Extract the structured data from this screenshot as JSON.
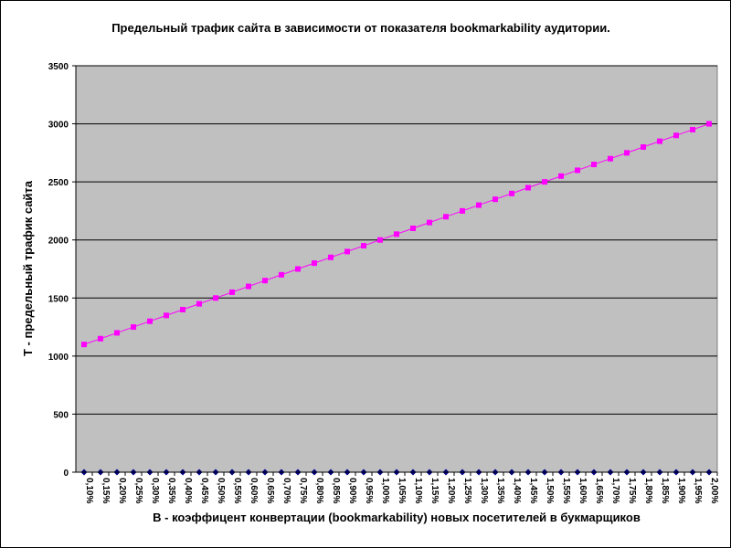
{
  "chart_data": {
    "type": "line",
    "title": "Предельный трафик сайта в зависимости от показателя bookmarkability аудитории.",
    "xlabel": "B - коэффицент конвертации (bookmarkability) новых посетителей в букмарщиков",
    "ylabel": "T - предельный трафик сайта",
    "ylim": [
      0,
      3500
    ],
    "yticks": [
      0,
      500,
      1000,
      1500,
      2000,
      2500,
      3000,
      3500
    ],
    "grid": true,
    "legend": "none",
    "plot_background": "#c0c0c0",
    "categories": [
      "0,10%",
      "0,15%",
      "0,20%",
      "0,25%",
      "0,30%",
      "0,35%",
      "0,40%",
      "0,45%",
      "0,50%",
      "0,55%",
      "0,60%",
      "0,65%",
      "0,70%",
      "0,75%",
      "0,80%",
      "0,85%",
      "0,90%",
      "0,95%",
      "1,00%",
      "1,05%",
      "1,10%",
      "1,15%",
      "1,20%",
      "1,25%",
      "1,30%",
      "1,35%",
      "1,40%",
      "1,45%",
      "1,50%",
      "1,55%",
      "1,60%",
      "1,65%",
      "1,70%",
      "1,75%",
      "1,80%",
      "1,85%",
      "1,90%",
      "1,95%",
      "2,00%"
    ],
    "series": [
      {
        "color": "#ff00ff",
        "marker": "square",
        "values": [
          1100,
          1150,
          1200,
          1250,
          1300,
          1350,
          1400,
          1450,
          1500,
          1550,
          1600,
          1650,
          1700,
          1750,
          1800,
          1850,
          1900,
          1950,
          2000,
          2050,
          2100,
          2150,
          2200,
          2250,
          2300,
          2350,
          2400,
          2450,
          2500,
          2550,
          2600,
          2650,
          2700,
          2750,
          2800,
          2850,
          2900,
          2950,
          3000
        ]
      },
      {
        "color": "#000080",
        "marker": "diamond",
        "values": [
          0,
          0,
          0,
          0,
          0,
          0,
          0,
          0,
          0,
          0,
          0,
          0,
          0,
          0,
          0,
          0,
          0,
          0,
          0,
          0,
          0,
          0,
          0,
          0,
          0,
          0,
          0,
          0,
          0,
          0,
          0,
          0,
          0,
          0,
          0,
          0,
          0,
          0,
          0
        ]
      }
    ]
  }
}
